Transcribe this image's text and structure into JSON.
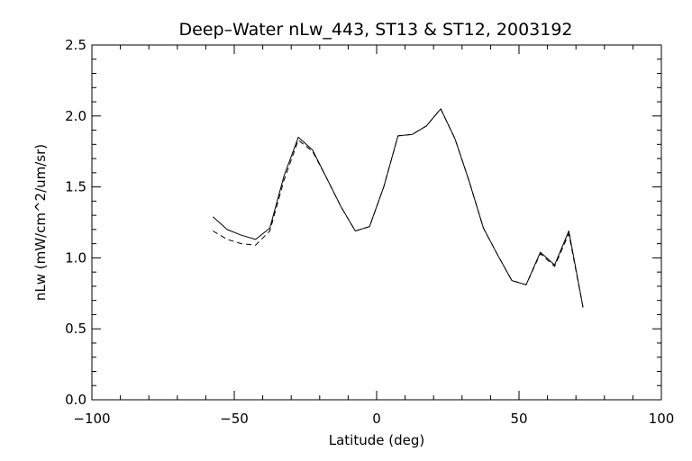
{
  "chart_data": {
    "type": "line",
    "title": "Deep–Water nLw_443, ST13 & ST12, 2003192",
    "xlabel": "Latitude (deg)",
    "ylabel": "nLw (mW/cm^2/um/sr)",
    "xlim": [
      -100,
      100
    ],
    "ylim": [
      0.0,
      2.5
    ],
    "xticks": [
      -100,
      -50,
      0,
      50,
      100
    ],
    "xtick_labels": [
      "−100",
      "−50",
      "0",
      "50",
      "100"
    ],
    "yticks": [
      0.0,
      0.5,
      1.0,
      1.5,
      2.0,
      2.5
    ],
    "ytick_labels": [
      "0.0",
      "0.5",
      "1.0",
      "1.5",
      "2.0",
      "2.5"
    ],
    "grid": false,
    "legend": "none",
    "series": [
      {
        "style": "solid",
        "color": "#000000",
        "x": [
          -57.5,
          -52.5,
          -47.5,
          -42.5,
          -37.5,
          -32.5,
          -27.5,
          -22.5,
          -17.5,
          -12.5,
          -7.5,
          -2.5,
          2.5,
          7.5,
          12.5,
          17.5,
          22.5,
          27.5,
          32.5,
          37.5,
          42.5,
          47.5,
          52.5,
          57.5,
          62.5,
          67.5,
          72.5
        ],
        "y": [
          1.29,
          1.2,
          1.16,
          1.13,
          1.21,
          1.58,
          1.85,
          1.76,
          1.56,
          1.36,
          1.19,
          1.22,
          1.5,
          1.86,
          1.87,
          1.93,
          2.05,
          1.84,
          1.54,
          1.21,
          1.02,
          0.84,
          0.81,
          1.04,
          0.95,
          1.19,
          0.65
        ]
      },
      {
        "style": "dashed",
        "color": "#000000",
        "x": [
          -57.5,
          -52.5,
          -47.5,
          -42.5,
          -37.5,
          -32.5,
          -27.5,
          -22.5,
          -17.5,
          -12.5,
          -7.5,
          -2.5,
          2.5,
          7.5,
          12.5,
          17.5,
          22.5,
          27.5,
          32.5,
          37.5,
          42.5,
          47.5,
          52.5,
          57.5,
          62.5,
          67.5,
          72.5
        ],
        "y": [
          1.19,
          1.13,
          1.1,
          1.09,
          1.19,
          1.55,
          1.83,
          1.75,
          1.56,
          1.36,
          1.19,
          1.22,
          1.5,
          1.86,
          1.87,
          1.93,
          2.05,
          1.84,
          1.54,
          1.21,
          1.02,
          0.84,
          0.81,
          1.03,
          0.94,
          1.17,
          0.65
        ]
      }
    ]
  }
}
